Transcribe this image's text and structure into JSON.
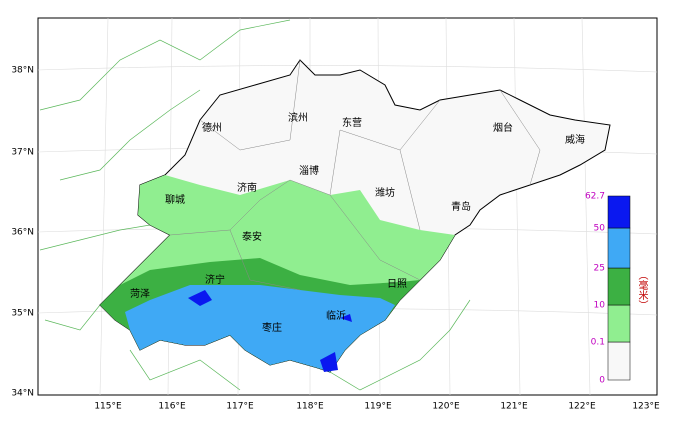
{
  "map": {
    "lat_labels": [
      "38°N",
      "37°N",
      "36°N",
      "35°N",
      "34°N"
    ],
    "lon_labels": [
      "115°E",
      "116°E",
      "117°E",
      "118°E",
      "119°E",
      "120°E",
      "121°E",
      "122°E",
      "123°E"
    ],
    "cities": [
      "德州",
      "滨州",
      "东营",
      "烟台",
      "威海",
      "聊城",
      "济南",
      "淄博",
      "潍坊",
      "青岛",
      "泰安",
      "菏泽",
      "济宁",
      "日照",
      "枣庄",
      "临沂"
    ],
    "legend": {
      "title": "（毫米）",
      "levels": [
        0,
        0.1,
        10,
        25,
        50,
        62.7
      ],
      "colors": [
        "#f8f8f8",
        "#90ee90",
        "#3cb043",
        "#3fa9f5",
        "#0a18f0"
      ]
    }
  }
}
